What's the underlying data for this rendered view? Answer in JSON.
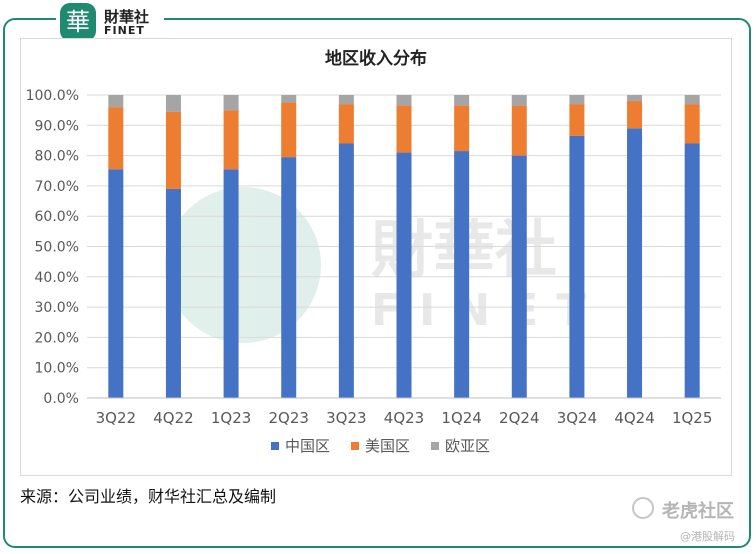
{
  "brand": {
    "logo_char": "華",
    "name_cn": "財華社",
    "name_en": "FINET"
  },
  "watermark": {
    "name_cn": "財華社",
    "name_en": "FINET",
    "bottom": "老虎社区",
    "bottom_sub": "@港股解码"
  },
  "source": "来源：公司业绩，财华社汇总及编制",
  "colors": {
    "frame": "#1f8a70",
    "china": "#4472c4",
    "us": "#ed7d31",
    "europe": "#a5a5a5",
    "grid": "#d9d9d9"
  },
  "chart_data": {
    "type": "bar",
    "stacked": true,
    "title": "地区收入分布",
    "categories": [
      "3Q22",
      "4Q22",
      "1Q23",
      "2Q23",
      "3Q23",
      "4Q23",
      "1Q24",
      "2Q24",
      "3Q24",
      "4Q24",
      "1Q25"
    ],
    "series": [
      {
        "name": "中国区",
        "color": "#4472c4",
        "values": [
          75.5,
          69,
          75.5,
          79.5,
          84,
          81,
          81.5,
          80,
          86.5,
          89,
          84
        ]
      },
      {
        "name": "美国区",
        "color": "#ed7d31",
        "values": [
          20.5,
          25.5,
          19.5,
          18,
          13,
          15.5,
          15,
          16.5,
          10.5,
          9,
          13
        ]
      },
      {
        "name": "欧亚区",
        "color": "#a5a5a5",
        "values": [
          4,
          5.5,
          5,
          2.5,
          3,
          3.5,
          3.5,
          3.5,
          3,
          2,
          3
        ]
      }
    ],
    "ylim": [
      0,
      100
    ],
    "yticks": [
      "0.0%",
      "10.0%",
      "20.0%",
      "30.0%",
      "40.0%",
      "50.0%",
      "60.0%",
      "70.0%",
      "80.0%",
      "90.0%",
      "100.0%"
    ],
    "grid": true,
    "legend_position": "bottom"
  }
}
